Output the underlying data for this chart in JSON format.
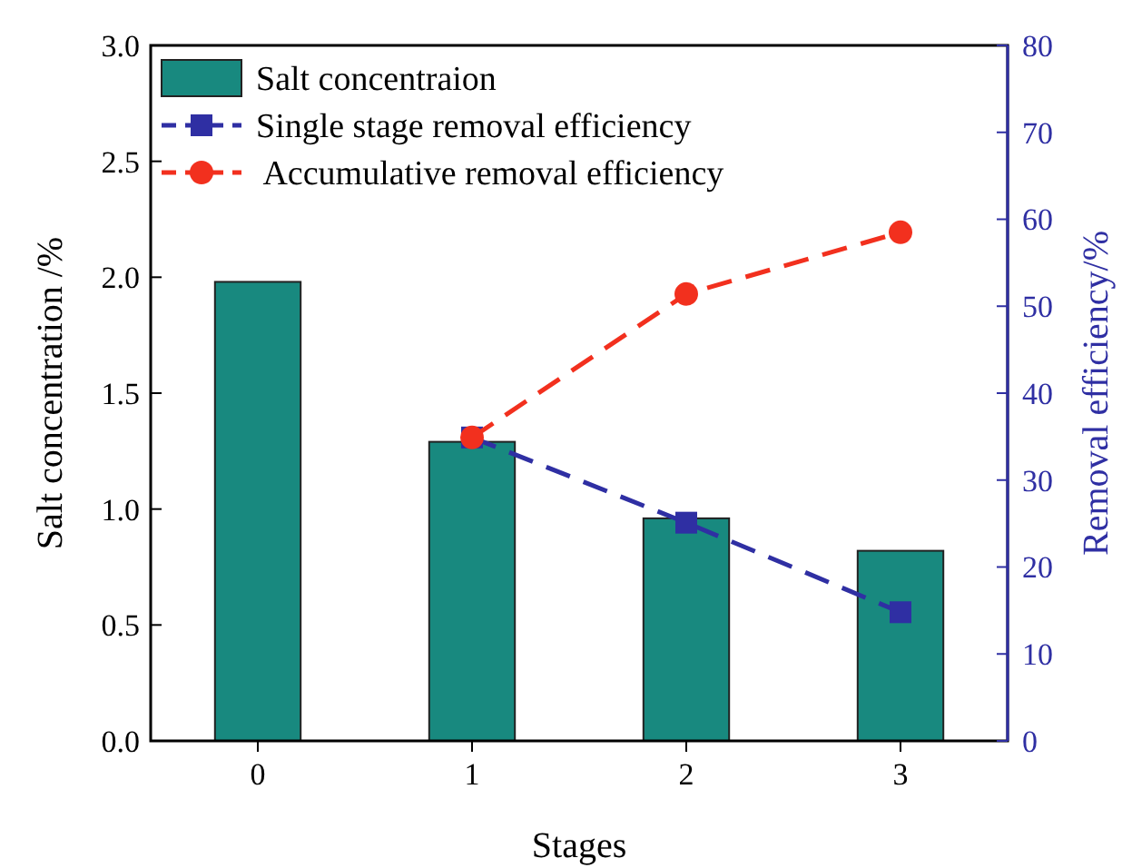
{
  "chart_data": {
    "type": "bar",
    "categories": [
      "0",
      "1",
      "2",
      "3"
    ],
    "xlabel": "Stages",
    "ylabel": "Salt concentration /%",
    "y2label": "Removal efficiency/%",
    "ylim": [
      0,
      3
    ],
    "yticks": [
      {
        "value": 0,
        "label": "0.0"
      },
      {
        "value": 0.5,
        "label": "0.5"
      },
      {
        "value": 1,
        "label": "1.0"
      },
      {
        "value": 1.5,
        "label": "1.5"
      },
      {
        "value": 2,
        "label": "2.0"
      },
      {
        "value": 2.5,
        "label": "2.5"
      },
      {
        "value": 3,
        "label": "3.0"
      }
    ],
    "y2lim": [
      0,
      80
    ],
    "y2ticks": [
      0,
      10,
      20,
      30,
      40,
      50,
      60,
      70,
      80
    ],
    "legend": "top left",
    "series": [
      {
        "name": "Salt concentraion",
        "color": "#18897f",
        "values": [
          1.98,
          1.29,
          0.96,
          0.82
        ]
      },
      {
        "name": "Single stage removal efficiency",
        "type": "line",
        "axis": "y2",
        "color": "#2f2fa3",
        "marker": "square",
        "line_style": "dashed",
        "values": [
          null,
          34.9,
          25.1,
          14.8
        ]
      },
      {
        "name": " Accumulative removal efficiency",
        "type": "line",
        "axis": "y2",
        "color": "#f2301e",
        "marker": "circle",
        "line_style": "dashed",
        "values": [
          null,
          34.9,
          51.4,
          58.5
        ]
      }
    ]
  }
}
